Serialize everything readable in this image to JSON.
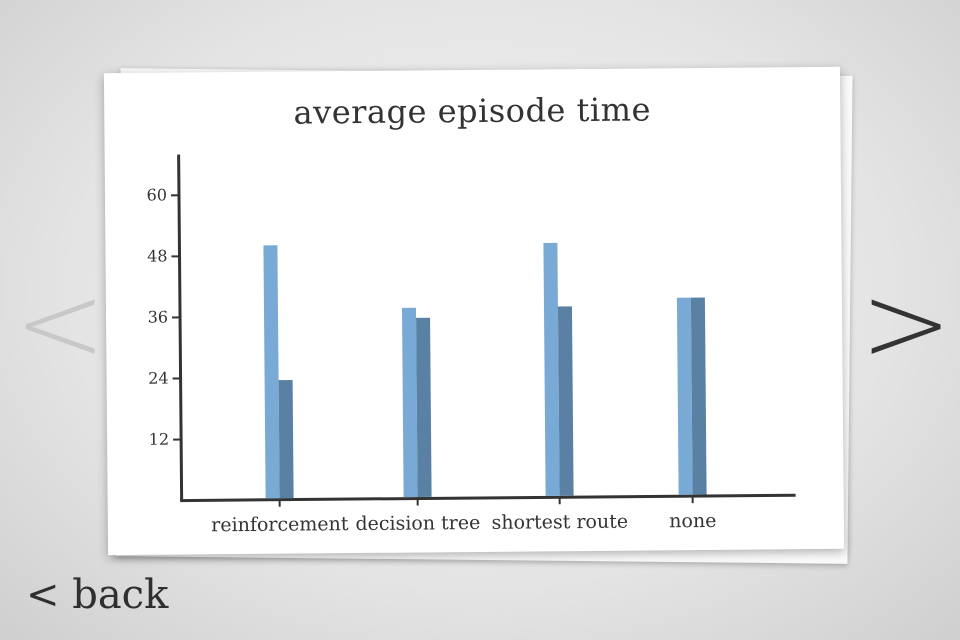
{
  "nav": {
    "prev_label": "<",
    "next_label": ">",
    "back_label": "< back"
  },
  "colors": {
    "series_1": "#79aad6",
    "series_2": "#5a81a3",
    "axis": "#333333"
  },
  "chart_data": {
    "type": "bar",
    "title": "average episode time",
    "xlabel": "",
    "ylabel": "",
    "ylim": [
      0,
      68
    ],
    "yticks": [
      12,
      24,
      36,
      48,
      60
    ],
    "categories": [
      "reinforcement",
      "decision tree",
      "shortest route",
      "none"
    ],
    "series": [
      {
        "values": [
          50,
          37.5,
          50,
          39
        ]
      },
      {
        "values": [
          23.5,
          35.5,
          37.5,
          39
        ]
      }
    ],
    "grid": false,
    "legend": "none"
  }
}
